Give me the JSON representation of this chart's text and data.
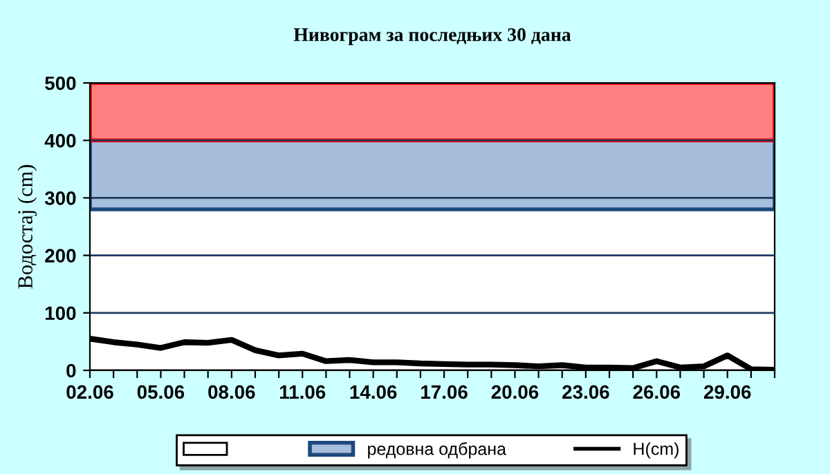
{
  "chart_data": {
    "type": "line",
    "title": "Нивограм за последњих 30 дана",
    "ylabel": "Водостај (cm)",
    "categories": [
      "02.06",
      null,
      null,
      "05.06",
      null,
      null,
      "08.06",
      null,
      null,
      "11.06",
      null,
      null,
      "14.06",
      null,
      null,
      "17.06",
      null,
      null,
      "20.06",
      null,
      null,
      "23.06",
      null,
      null,
      "26.06",
      null,
      null,
      "29.06",
      null,
      null
    ],
    "series": [
      {
        "name": "H(cm)",
        "color": "#000000",
        "values": [
          55,
          49,
          45,
          39,
          49,
          48,
          53,
          35,
          26,
          29,
          16,
          18,
          14,
          14,
          12,
          11,
          10,
          10,
          9,
          7,
          9,
          5,
          5,
          4,
          16,
          5,
          7,
          26,
          2,
          1
        ]
      }
    ],
    "bands": [
      {
        "axis": "y",
        "from": 0,
        "to": 280,
        "color": "#ffffff"
      },
      {
        "axis": "y",
        "from": 280,
        "to": 400,
        "label": "редовна одбрана",
        "color": "#a6bddb"
      },
      {
        "axis": "y",
        "from": 400,
        "to": 500,
        "color": "#ff8080"
      }
    ],
    "ylim": [
      0,
      500
    ],
    "yticks": [
      0,
      100,
      200,
      300,
      400,
      500
    ],
    "grid": "y",
    "legend": "bottom",
    "marker": "none",
    "line_style": "solid"
  }
}
